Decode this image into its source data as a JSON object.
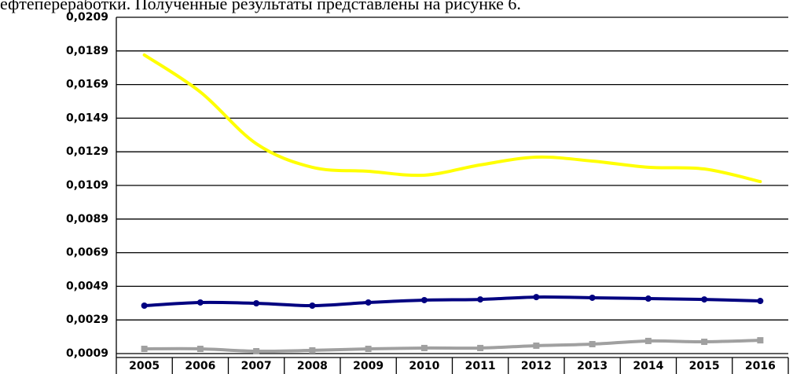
{
  "caption_text": "ефтепереработки. Полученные результаты представлены на рисунке 6.",
  "chart_data": {
    "type": "line",
    "categories": [
      "2005",
      "2006",
      "2007",
      "2008",
      "2009",
      "2010",
      "2011",
      "2012",
      "2013",
      "2014",
      "2015",
      "2016"
    ],
    "series": [
      {
        "color": "#ffff00",
        "marker": "none",
        "values": [
          0.01866,
          0.01646,
          0.01338,
          0.01198,
          0.01174,
          0.01151,
          0.01212,
          0.01258,
          0.01235,
          0.01198,
          0.01188,
          0.01113
        ]
      },
      {
        "color": "#000080",
        "marker": "circle",
        "values": [
          0.00375,
          0.00394,
          0.00389,
          0.00375,
          0.00394,
          0.00408,
          0.00412,
          0.00426,
          0.00422,
          0.00417,
          0.00412,
          0.00403
        ]
      },
      {
        "color": "#a0a0a0",
        "marker": "square",
        "values": [
          0.00118,
          0.00118,
          0.00104,
          0.00109,
          0.00118,
          0.00123,
          0.00123,
          0.00137,
          0.00146,
          0.00165,
          0.0016,
          0.00169
        ]
      }
    ],
    "ylim": [
      0.0009,
      0.0209
    ],
    "yticks": [
      {
        "value": 0.0009,
        "label": "0,0009"
      },
      {
        "value": 0.0029,
        "label": "0,0029"
      },
      {
        "value": 0.0049,
        "label": "0,0049"
      },
      {
        "value": 0.0069,
        "label": "0,0069"
      },
      {
        "value": 0.0089,
        "label": "0,0089"
      },
      {
        "value": 0.0109,
        "label": "0,0109"
      },
      {
        "value": 0.0129,
        "label": "0,0129"
      },
      {
        "value": 0.0149,
        "label": "0,0149"
      },
      {
        "value": 0.0169,
        "label": "0,0169"
      },
      {
        "value": 0.0189,
        "label": "0,0189"
      },
      {
        "value": 0.0209,
        "label": "0,0209"
      }
    ],
    "grid": true,
    "smooth": true
  }
}
